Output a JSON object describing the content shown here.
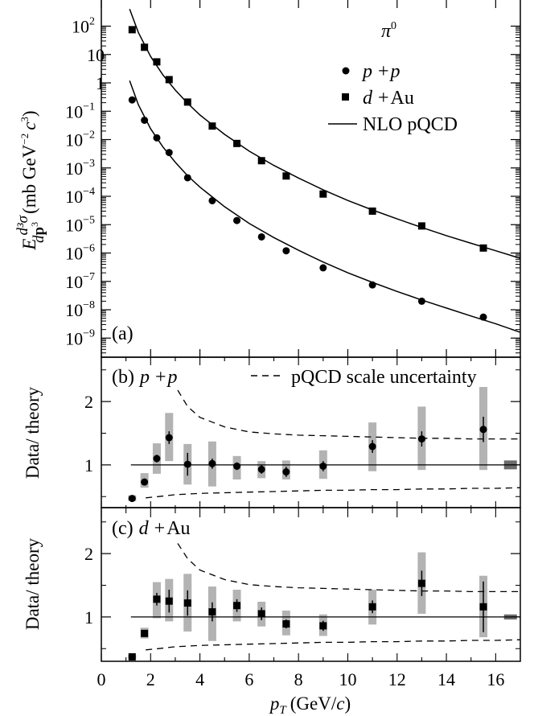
{
  "chart_data": [
    {
      "panel": "(a)",
      "type": "scatter",
      "y_scale": "log",
      "xlim": [
        0,
        17
      ],
      "ylim": [
        1e-10,
        1000
      ],
      "y_tick_labels": [
        {
          "base": "10",
          "exp": "2",
          "value": 100
        },
        {
          "base": "10",
          "exp": "",
          "value": 10
        },
        {
          "base": "1",
          "exp": "",
          "value": 1
        },
        {
          "base": "10",
          "exp": "−1",
          "value": 0.1
        },
        {
          "base": "10",
          "exp": "−2",
          "value": 0.01
        },
        {
          "base": "10",
          "exp": "−3",
          "value": 0.001
        },
        {
          "base": "10",
          "exp": "−4",
          "value": 0.0001
        },
        {
          "base": "10",
          "exp": "−5",
          "value": 1e-05
        },
        {
          "base": "10",
          "exp": "−6",
          "value": 1e-06
        },
        {
          "base": "10",
          "exp": "−7",
          "value": 1e-07
        },
        {
          "base": "10",
          "exp": "−8",
          "value": 1e-08
        },
        {
          "base": "10",
          "exp": "−9",
          "value": 1e-09
        }
      ],
      "ylabel": {
        "E": "E",
        "num": "d³σ",
        "den_d": "d",
        "den_p": "p",
        "den_exp": "3",
        "units_open": "(mb GeV",
        "units_exp1": "−2",
        "units_c": "c",
        "units_exp2": "3",
        "units_close": ")"
      },
      "legend": {
        "title": {
          "symbol": "π",
          "sup": "0"
        },
        "pp": {
          "a": "p",
          "op": "+",
          "b": "p"
        },
        "dau": {
          "a": "d",
          "op": "+",
          "b": "Au"
        },
        "nlo": "NLO pQCD"
      },
      "series": [
        {
          "name": "p + p",
          "marker": "circle",
          "x": [
            1.25,
            1.75,
            2.25,
            2.75,
            3.5,
            4.5,
            5.5,
            6.5,
            7.5,
            9.0,
            11.0,
            13.0,
            15.5
          ],
          "y": [
            0.25,
            0.048,
            0.0115,
            0.0035,
            0.00045,
            7e-05,
            1.4e-05,
            3.7e-06,
            1.2e-06,
            3e-07,
            7.5e-08,
            2e-08,
            5.5e-09
          ]
        },
        {
          "name": "d + Au",
          "marker": "square",
          "x": [
            1.25,
            1.75,
            2.25,
            2.75,
            3.5,
            4.5,
            5.5,
            6.5,
            7.5,
            9.0,
            11.0,
            13.0,
            15.5
          ],
          "y": [
            75,
            18,
            5.5,
            1.3,
            0.21,
            0.03,
            0.0073,
            0.0018,
            0.00052,
            0.00012,
            3e-05,
            9e-06,
            1.5e-06
          ]
        },
        {
          "name": "NLO pQCD (p + p)",
          "marker": "line",
          "x": [
            1.15,
            1.5,
            2.0,
            2.5,
            3.0,
            3.5,
            4.0,
            5.0,
            6.0,
            7.0,
            8.0,
            9.0,
            10.0,
            11.0,
            12.0,
            13.0,
            14.0,
            15.0,
            16.0,
            17.0
          ],
          "y": [
            1.2,
            0.17,
            0.024,
            0.0055,
            0.0016,
            0.00053,
            0.00021,
            4.3e-05,
            1.1e-05,
            3.5e-06,
            1.25e-06,
            4.8e-07,
            2e-07,
            9.2e-08,
            4.4e-08,
            2.2e-08,
            1.15e-08,
            6e-09,
            3.2e-09,
            1.6e-09
          ]
        },
        {
          "name": "NLO pQCD (d + Au)",
          "marker": "line",
          "x": [
            1.15,
            1.5,
            2.0,
            2.5,
            3.0,
            3.5,
            4.0,
            5.0,
            6.0,
            7.0,
            8.0,
            9.0,
            10.0,
            11.0,
            12.0,
            13.0,
            14.0,
            15.0,
            16.0,
            17.0
          ],
          "y": [
            400,
            60,
            8.5,
            1.9,
            0.56,
            0.19,
            0.074,
            0.0153,
            0.0039,
            0.00123,
            0.00044,
            0.00017,
            7.1e-05,
            3.3e-05,
            1.6e-05,
            8e-06,
            4.1e-06,
            2.2e-06,
            1.2e-06,
            6.5e-07
          ]
        }
      ]
    },
    {
      "panel": "(b)",
      "type": "scatter",
      "title": {
        "label": "(b)",
        "a": "p",
        "op": "+",
        "b": "p"
      },
      "legend_text": "pQCD scale uncertainty",
      "ylabel": "Data/ theory",
      "xlim": [
        0,
        17
      ],
      "ylim": [
        0.3,
        2.7
      ],
      "y_ticks": [
        1,
        2
      ],
      "reference_line": 1,
      "points": {
        "x": [
          1.25,
          1.75,
          2.25,
          2.75,
          3.5,
          4.5,
          5.5,
          6.5,
          7.5,
          9.0,
          11.0,
          13.0,
          15.5
        ],
        "y": [
          0.47,
          0.73,
          1.1,
          1.43,
          1.01,
          1.02,
          0.98,
          0.93,
          0.89,
          0.98,
          1.29,
          1.41,
          1.56
        ],
        "err": [
          0.03,
          0.04,
          0.06,
          0.1,
          0.18,
          0.08,
          0.06,
          0.07,
          0.08,
          0.08,
          0.1,
          0.12,
          0.2
        ]
      },
      "sys_boxes": {
        "x": [
          1.25,
          1.75,
          2.25,
          2.75,
          3.5,
          4.5,
          5.5,
          6.5,
          7.5,
          9.0,
          11.0,
          13.0,
          15.5
        ],
        "low": [
          0.43,
          0.64,
          0.86,
          1.06,
          0.69,
          0.66,
          0.77,
          0.79,
          0.77,
          0.78,
          0.9,
          0.92,
          0.92
        ],
        "high": [
          0.52,
          0.87,
          1.34,
          1.82,
          1.33,
          1.37,
          1.14,
          1.06,
          1.07,
          1.23,
          1.67,
          1.92,
          2.23
        ]
      },
      "norm_box": {
        "x": 16.6,
        "low": 0.93,
        "high": 1.07
      },
      "scale_uncertainty_upper": {
        "x": [
          3.1,
          3.5,
          4.0,
          5.0,
          6.0,
          7.0,
          8.0,
          9.0,
          10.0,
          11.0,
          12.0,
          13.0,
          14.0,
          15.0,
          16.0,
          17.0
        ],
        "y": [
          2.18,
          1.92,
          1.75,
          1.6,
          1.52,
          1.49,
          1.47,
          1.46,
          1.45,
          1.44,
          1.43,
          1.42,
          1.42,
          1.41,
          1.41,
          1.41
        ]
      },
      "scale_uncertainty_lower": {
        "x": [
          1.8,
          2.3,
          3.0,
          4.0,
          5.0,
          6.0,
          7.0,
          8.0,
          9.0,
          10.0,
          11.0,
          12.0,
          13.0,
          14.0,
          15.0,
          16.0,
          17.0
        ],
        "y": [
          0.48,
          0.5,
          0.53,
          0.55,
          0.56,
          0.57,
          0.58,
          0.59,
          0.6,
          0.6,
          0.61,
          0.61,
          0.62,
          0.62,
          0.63,
          0.63,
          0.64
        ]
      }
    },
    {
      "panel": "(c)",
      "type": "scatter",
      "title": {
        "label": "(c)",
        "a": "d",
        "op": "+",
        "b": "Au"
      },
      "ylabel": "Data/ theory",
      "xlabel": {
        "p": "p",
        "sub": "T",
        "units_open": "(GeV/",
        "units_c": "c",
        "units_close": ")"
      },
      "xlim": [
        0,
        17
      ],
      "ylim": [
        0.3,
        2.7
      ],
      "x_ticks": [
        0,
        2,
        4,
        6,
        8,
        10,
        12,
        14,
        16
      ],
      "y_ticks": [
        1,
        2
      ],
      "reference_line": 1,
      "points": {
        "x": [
          1.25,
          1.75,
          2.25,
          2.75,
          3.5,
          4.5,
          5.5,
          6.5,
          7.5,
          9.0,
          11.0,
          13.0,
          15.5
        ],
        "y": [
          0.37,
          0.74,
          1.28,
          1.25,
          1.22,
          1.08,
          1.18,
          1.05,
          0.89,
          0.86,
          1.16,
          1.53,
          1.16
        ],
        "err": [
          0.02,
          0.05,
          0.1,
          0.18,
          0.2,
          0.15,
          0.1,
          0.1,
          0.07,
          0.08,
          0.1,
          0.2,
          0.4
        ]
      },
      "sys_boxes": {
        "x": [
          1.25,
          1.75,
          2.25,
          2.75,
          3.5,
          4.5,
          5.5,
          6.5,
          7.5,
          9.0,
          11.0,
          13.0,
          15.5
        ],
        "low": [
          0.34,
          0.66,
          0.98,
          0.93,
          0.77,
          0.62,
          0.93,
          0.85,
          0.71,
          0.7,
          0.88,
          1.05,
          0.68
        ],
        "high": [
          0.4,
          0.83,
          1.55,
          1.6,
          1.68,
          1.48,
          1.43,
          1.24,
          1.1,
          1.04,
          1.43,
          2.02,
          1.65
        ]
      },
      "norm_box": {
        "x": 16.6,
        "low": 0.96,
        "high": 1.04
      },
      "scale_uncertainty_upper": {
        "x": [
          3.1,
          3.5,
          4.0,
          5.0,
          6.0,
          7.0,
          8.0,
          9.0,
          10.0,
          11.0,
          12.0,
          13.0,
          14.0,
          15.0,
          16.0,
          17.0
        ],
        "y": [
          2.16,
          1.92,
          1.74,
          1.59,
          1.51,
          1.48,
          1.46,
          1.45,
          1.44,
          1.43,
          1.42,
          1.41,
          1.41,
          1.4,
          1.4,
          1.4
        ]
      },
      "scale_uncertainty_lower": {
        "x": [
          1.8,
          2.3,
          3.0,
          4.0,
          5.0,
          6.0,
          7.0,
          8.0,
          9.0,
          10.0,
          11.0,
          12.0,
          13.0,
          14.0,
          15.0,
          16.0,
          17.0
        ],
        "y": [
          0.48,
          0.5,
          0.53,
          0.55,
          0.56,
          0.57,
          0.58,
          0.59,
          0.6,
          0.6,
          0.61,
          0.61,
          0.62,
          0.62,
          0.63,
          0.63,
          0.64
        ]
      }
    }
  ]
}
